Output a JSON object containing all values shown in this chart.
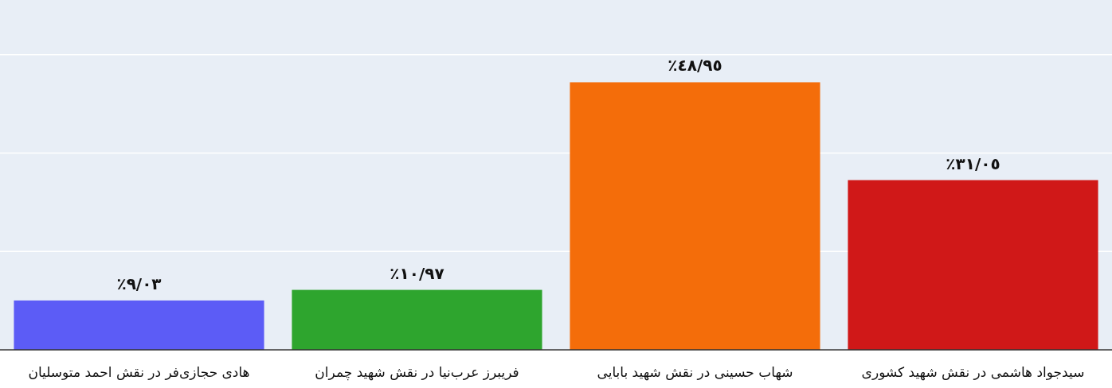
{
  "chart_data": {
    "type": "bar",
    "categories": [
      "هادی حجازی‌فر در نقش احمد متوسلیان",
      "فریبرز عرب‌نیا در نقش شهید چمران",
      "شهاب حسینی در نقش شهید بابایی",
      "سیدجواد هاشمی در نقش شهید کشوری"
    ],
    "values": [
      9.03,
      10.97,
      48.95,
      31.05
    ],
    "value_labels": [
      "٩/٠٣٪",
      "١٠/٩٧٪",
      "٤٨/٩٥٪",
      "٣١/٠٥٪"
    ],
    "colors": [
      "#5c5cf6",
      "#2ea52e",
      "#f46d0a",
      "#d01818"
    ],
    "ylim": [
      0,
      64
    ],
    "yticks": [
      {
        "value": 0,
        "label": null
      },
      {
        "value": 18,
        "label": null
      },
      {
        "value": 36,
        "label": null
      },
      {
        "value": 54,
        "label": null
      }
    ],
    "grid": "y"
  }
}
